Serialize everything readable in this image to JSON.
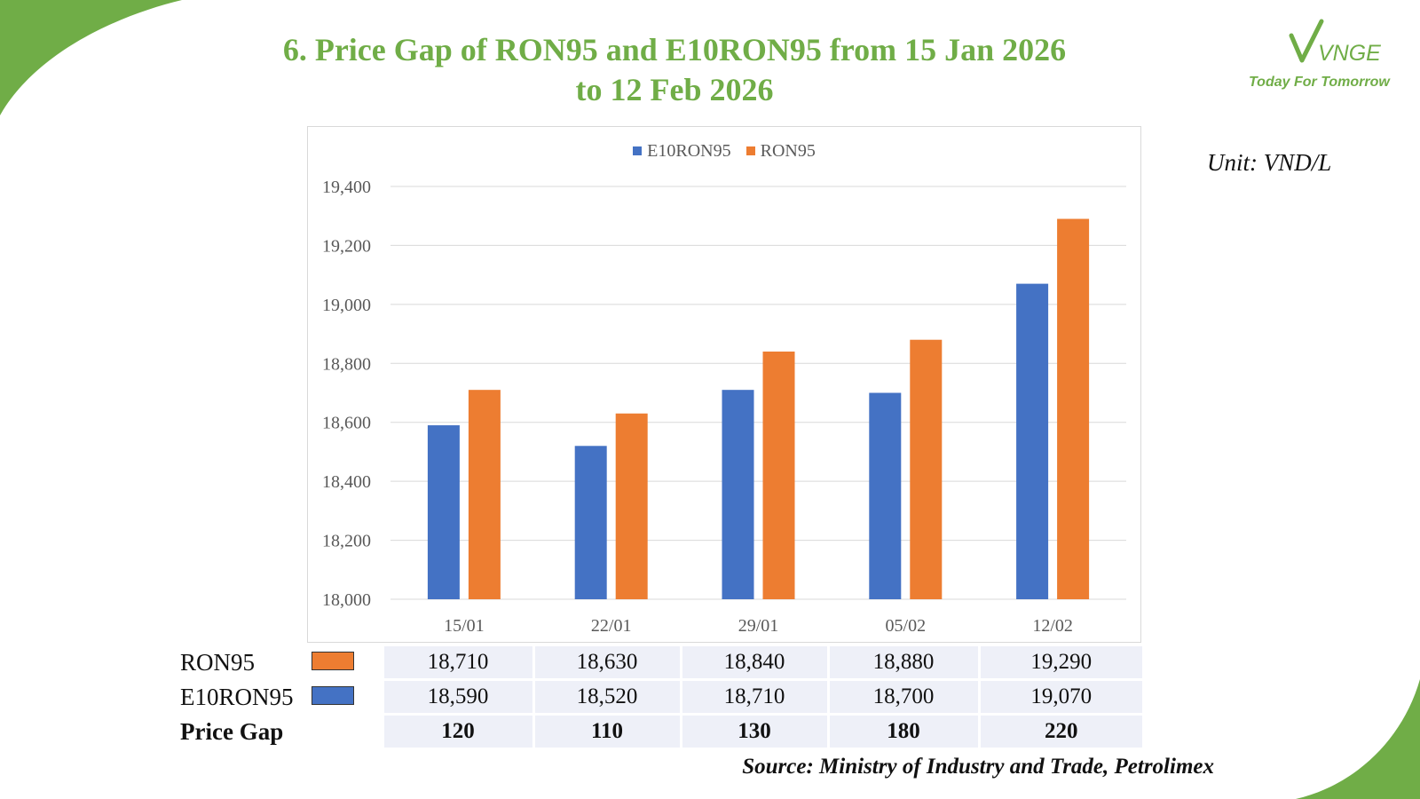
{
  "page": {
    "title_line1": "6. Price Gap of RON95 and E10RON95 from 15 Jan 2026",
    "title_line2": "to 12 Feb 2026",
    "unit_label": "Unit: VND/L",
    "source": "Source: Ministry of Industry and Trade, Petrolimex"
  },
  "logo": {
    "mark": "VNGE",
    "tagline": "Today For Tomorrow"
  },
  "colors": {
    "accent_green": "#70AD47",
    "e10ron95": "#4472C4",
    "ron95": "#ED7D31",
    "grid": "#d9d9d9",
    "axis_text": "#595959"
  },
  "chart_data": {
    "type": "bar",
    "title": "",
    "xlabel": "",
    "ylabel": "",
    "categories": [
      "15/01",
      "22/01",
      "29/01",
      "05/02",
      "12/02"
    ],
    "series": [
      {
        "name": "E10RON95",
        "values": [
          18590,
          18520,
          18710,
          18700,
          19070
        ]
      },
      {
        "name": "RON95",
        "values": [
          18710,
          18630,
          18840,
          18880,
          19290
        ]
      }
    ],
    "ylim": [
      18000,
      19400
    ],
    "yticks": [
      18000,
      18200,
      18400,
      18600,
      18800,
      19000,
      19200,
      19400
    ],
    "ytick_labels": [
      "18,000",
      "18,200",
      "18,400",
      "18,600",
      "18,800",
      "19,000",
      "19,200",
      "19,400"
    ],
    "grid": true,
    "legend": "top-center"
  },
  "table": {
    "rows": [
      {
        "label": "RON95",
        "values": [
          "18,710",
          "18,630",
          "18,840",
          "18,880",
          "19,290"
        ]
      },
      {
        "label": "E10RON95",
        "values": [
          "18,590",
          "18,520",
          "18,710",
          "18,700",
          "19,070"
        ]
      },
      {
        "label": "Price Gap",
        "values": [
          "120",
          "110",
          "130",
          "180",
          "220"
        ]
      }
    ]
  }
}
